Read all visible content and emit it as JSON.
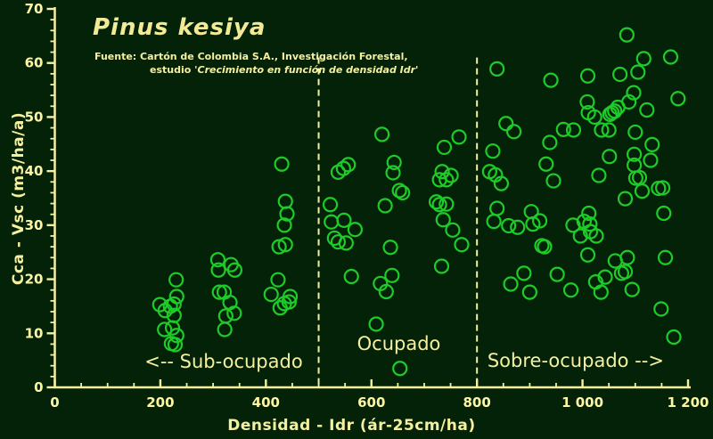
{
  "window": {
    "kind": "scatter-chart-figure"
  },
  "chart_data": {
    "type": "scatter",
    "title": "Pinus kesiya",
    "source_line1": "Fuente: Cartón de Colombia S.A., Investigación Forestal,",
    "source_line2_prefix": "estudio ",
    "source_line2_quote": "'Crecimiento en función de densidad Idr'",
    "xlabel": "Densidad - Idr  (ár-25cm/ha)",
    "ylabel": "Cca - Vsc  (m3/ha/a)",
    "xlim": [
      0,
      1200
    ],
    "ylim": [
      0,
      70
    ],
    "x_ticks": [
      0,
      200,
      400,
      600,
      800,
      1000,
      1200
    ],
    "x_tick_labels": [
      "0",
      "200",
      "400",
      "600",
      "800",
      "1 000",
      "1 200"
    ],
    "y_ticks": [
      0,
      10,
      20,
      30,
      40,
      50,
      60,
      70
    ],
    "x_minor_step": 50,
    "y_minor_step": 2,
    "grid": false,
    "legend": "none",
    "dividers": [
      500,
      800
    ],
    "divider_top_y": 61,
    "annotations": [
      {
        "text": "<-- Sub-ocupado",
        "x": 320,
        "y": 3.6
      },
      {
        "text": "Ocupado",
        "x": 652,
        "y": 6.9
      },
      {
        "text": "Sobre-ocupado -->",
        "x": 987,
        "y": 3.8
      }
    ],
    "marker": {
      "shape": "circle-outline",
      "color": "#1ecb29",
      "radius_px": 7.5,
      "stroke_px": 2.2
    },
    "colors": {
      "background": "#042208",
      "axis": "#f5f0a0",
      "tick_label": "#fdf6a3",
      "title": "#f2ea96",
      "marker": "#1ecb29"
    },
    "series": [
      {
        "name": "Sub-ocupado",
        "points": [
          [
            199,
            15.3
          ],
          [
            209,
            14.2
          ],
          [
            219,
            15.0
          ],
          [
            226,
            15.4
          ],
          [
            231,
            16.8
          ],
          [
            226,
            13.3
          ],
          [
            230,
            19.9
          ],
          [
            208,
            10.7
          ],
          [
            223,
            11.0
          ],
          [
            231,
            9.6
          ],
          [
            221,
            8.1
          ],
          [
            228,
            7.9
          ],
          [
            309,
            23.6
          ],
          [
            334,
            22.7
          ],
          [
            341,
            21.7
          ],
          [
            310,
            21.7
          ],
          [
            312,
            17.6
          ],
          [
            321,
            17.6
          ],
          [
            332,
            15.7
          ],
          [
            324,
            13.2
          ],
          [
            340,
            13.7
          ],
          [
            322,
            10.7
          ],
          [
            430,
            41.3
          ],
          [
            437,
            34.4
          ],
          [
            440,
            32.1
          ],
          [
            435,
            30.0
          ],
          [
            425,
            26.0
          ],
          [
            437,
            26.4
          ],
          [
            423,
            19.9
          ],
          [
            410,
            17.2
          ],
          [
            446,
            16.8
          ],
          [
            444,
            15.8
          ],
          [
            435,
            15.5
          ],
          [
            427,
            14.7
          ]
        ]
      },
      {
        "name": "Ocupado",
        "points": [
          [
            562,
            20.5
          ],
          [
            537,
            39.8
          ],
          [
            547,
            40.5
          ],
          [
            556,
            41.2
          ],
          [
            522,
            33.8
          ],
          [
            524,
            30.6
          ],
          [
            548,
            30.9
          ],
          [
            569,
            29.2
          ],
          [
            530,
            27.6
          ],
          [
            537,
            26.9
          ],
          [
            552,
            26.7
          ],
          [
            620,
            46.8
          ],
          [
            766,
            46.3
          ],
          [
            738,
            44.4
          ],
          [
            643,
            41.6
          ],
          [
            641,
            39.7
          ],
          [
            734,
            39.9
          ],
          [
            751,
            39.2
          ],
          [
            742,
            38.4
          ],
          [
            729,
            38.4
          ],
          [
            653,
            36.4
          ],
          [
            659,
            36.0
          ],
          [
            626,
            33.6
          ],
          [
            723,
            34.3
          ],
          [
            742,
            33.9
          ],
          [
            729,
            33.8
          ],
          [
            736,
            31.0
          ],
          [
            754,
            29.1
          ],
          [
            636,
            25.9
          ],
          [
            771,
            26.4
          ],
          [
            733,
            22.4
          ],
          [
            639,
            20.7
          ],
          [
            617,
            19.2
          ],
          [
            628,
            17.7
          ],
          [
            609,
            11.7
          ],
          [
            654,
            3.5
          ]
        ]
      },
      {
        "name": "Sobre-ocupado",
        "points": [
          [
            838,
            58.9
          ],
          [
            940,
            56.8
          ],
          [
            1010,
            57.6
          ],
          [
            1009,
            52.8
          ],
          [
            1011,
            50.8
          ],
          [
            855,
            48.8
          ],
          [
            870,
            47.3
          ],
          [
            964,
            47.7
          ],
          [
            983,
            47.6
          ],
          [
            1084,
            65.2
          ],
          [
            1116,
            60.8
          ],
          [
            1167,
            61.1
          ],
          [
            1071,
            57.9
          ],
          [
            1105,
            58.3
          ],
          [
            1097,
            54.5
          ],
          [
            1088,
            52.8
          ],
          [
            1067,
            51.8
          ],
          [
            1061,
            51.1
          ],
          [
            1056,
            50.8
          ],
          [
            1052,
            50.5
          ],
          [
            1181,
            53.4
          ],
          [
            1122,
            51.3
          ],
          [
            1023,
            50.0
          ],
          [
            1036,
            47.6
          ],
          [
            1050,
            47.6
          ],
          [
            1100,
            47.2
          ],
          [
            938,
            45.3
          ],
          [
            830,
            43.7
          ],
          [
            931,
            41.3
          ],
          [
            824,
            39.9
          ],
          [
            835,
            39.3
          ],
          [
            846,
            37.7
          ],
          [
            945,
            38.2
          ],
          [
            838,
            33.1
          ],
          [
            832,
            30.7
          ],
          [
            903,
            32.5
          ],
          [
            860,
            29.9
          ],
          [
            877,
            29.6
          ],
          [
            906,
            30.2
          ],
          [
            919,
            30.8
          ],
          [
            982,
            30.0
          ],
          [
            1003,
            30.7
          ],
          [
            1014,
            30.2
          ],
          [
            1015,
            28.8
          ],
          [
            1026,
            28.0
          ],
          [
            996,
            28.0
          ],
          [
            1012,
            32.2
          ],
          [
            1010,
            24.5
          ],
          [
            923,
            26.2
          ],
          [
            928,
            26.0
          ],
          [
            1132,
            44.9
          ],
          [
            1051,
            42.7
          ],
          [
            1098,
            43.1
          ],
          [
            1129,
            42.0
          ],
          [
            1098,
            41.1
          ],
          [
            1031,
            39.2
          ],
          [
            1101,
            38.7
          ],
          [
            1108,
            38.8
          ],
          [
            1113,
            36.3
          ],
          [
            1144,
            36.8
          ],
          [
            1152,
            36.9
          ],
          [
            1081,
            34.9
          ],
          [
            1154,
            32.2
          ],
          [
            1157,
            24.0
          ],
          [
            1062,
            23.4
          ],
          [
            1085,
            24.0
          ],
          [
            1081,
            21.4
          ],
          [
            1074,
            21.1
          ],
          [
            889,
            21.1
          ],
          [
            864,
            19.1
          ],
          [
            900,
            17.6
          ],
          [
            952,
            20.9
          ],
          [
            978,
            18.0
          ],
          [
            1025,
            19.5
          ],
          [
            1043,
            20.4
          ],
          [
            1035,
            17.6
          ],
          [
            1094,
            18.1
          ],
          [
            1149,
            14.5
          ],
          [
            1173,
            9.3
          ]
        ]
      }
    ]
  }
}
